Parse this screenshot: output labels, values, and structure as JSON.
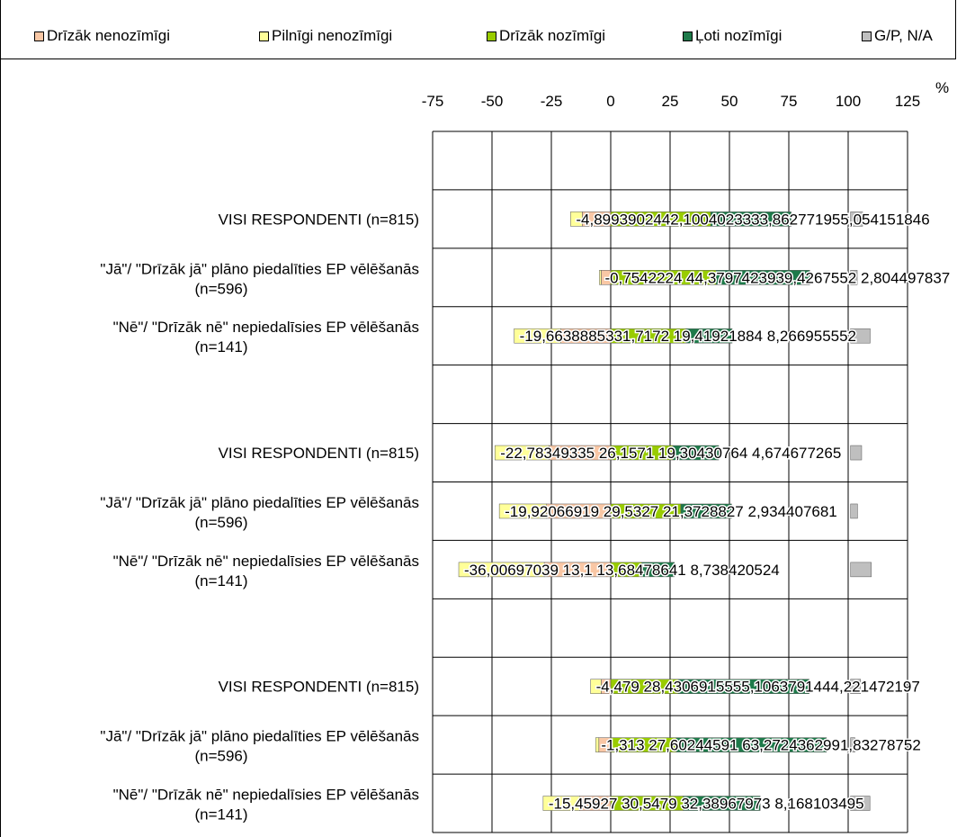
{
  "legend": [
    {
      "label": "Drīzāk nenozīmīgi",
      "color": "#f9c7a5"
    },
    {
      "label": "Pilnīgi nenozīmīgi",
      "color": "#ffff99"
    },
    {
      "label": "Drīzāk nozīmīgi",
      "color": "#99cc00"
    },
    {
      "label": "Ļoti nozīmīgi",
      "color": "#1e7a4a"
    },
    {
      "label": "G/P, N/A",
      "color": "#bfbfbf"
    }
  ],
  "axis": {
    "unit": "%"
  },
  "chart_data": {
    "type": "bar",
    "orientation": "horizontal",
    "stacked": "diverging",
    "xlim": [
      -75,
      125
    ],
    "xticks": [
      -75,
      -50,
      -25,
      0,
      25,
      50,
      75,
      100,
      125
    ],
    "x_unit": "%",
    "grid": true,
    "legend_position": "top",
    "rows": [
      {
        "label": "",
        "values": null
      },
      {
        "label": "VISI RESPONDENTI (n=815)",
        "values": {
          "dn": -12,
          "pn": -4.899390242,
          "dz": 42.10040233,
          "lz": 33.86277195,
          "gp": 5.054151846
        },
        "value_text": "-4,8993902442,1004023333,862771955,054151846"
      },
      {
        "label": "\"Jā\"/  \"Drīzāk jā\" plāno piedalīties EP vēlēšanās (n=596)",
        "values": {
          "dn": -4,
          "pn": -0.75422244,
          "dz": 44.37974239,
          "lz": 39.42675528,
          "gp": 2.804497837
        },
        "value_text": "-0,7542224 44,3797423939,4267552 2,804497837"
      },
      {
        "label": "\"Nē\"/ \"Drīzāk nē\" nepiedalīsies EP vēlēšanās (n=141)",
        "values": {
          "dn": -21,
          "pn": -19.66388853,
          "dz": 31.7172,
          "lz": 19.41921884,
          "gp": 8.266955552
        },
        "value_text": "-19,6638885331,7172 19,41921884       8,266955552"
      },
      {
        "label": "",
        "values": null
      },
      {
        "label": "VISI RESPONDENTI (n=815)",
        "values": {
          "dn": -26,
          "pn": -22.78349335,
          "dz": 26.1571,
          "lz": 19.30430764,
          "gp": 4.674677265
        },
        "value_text": "-22,78349335 26,1571 19,30430764       4,674677265"
      },
      {
        "label": "\"Jā\"/  \"Drīzāk jā\" plāno piedalīties EP vēlēšanās (n=596)",
        "values": {
          "dn": -27,
          "pn": -19.92066919,
          "dz": 29.5327,
          "lz": 21.3728827,
          "gp": 2.934407681
        },
        "value_text": "-19,92066919 29,5327 21,3728827      2,934407681"
      },
      {
        "label": "\"Nē\"/ \"Drīzāk nē\" nepiedalīsies EP vēlēšanās (n=141)",
        "values": {
          "dn": -28,
          "pn": -36.00697039,
          "dz": 13.1,
          "lz": 13.68478641,
          "gp": 8.738420524
        },
        "value_text": "-36,00697039 13,1 13,68478641        8,738420524"
      },
      {
        "label": "",
        "values": null
      },
      {
        "label": "VISI RESPONDENTI (n=815)",
        "values": {
          "dn": -4,
          "pn": -4.479,
          "dz": 28.43069155,
          "lz": 55.10637914,
          "gp": 4.221472197
        },
        "value_text": "-4,479 28,4306915555,1063791444,221472197"
      },
      {
        "label": "\"Jā\"/  \"Drīzāk jā\" plāno piedalīties EP vēlēšanās (n=596)",
        "values": {
          "dn": -5,
          "pn": -1.313,
          "dz": 27.60244591,
          "lz": 63.27243629,
          "gp": 1.83278752
        },
        "value_text": "-1,313 27,60244591 63,2724362991,83278752"
      },
      {
        "label": "\"Nē\"/ \"Drīzāk nē\" nepiedalīsies EP vēlēšanās (n=141)",
        "values": {
          "dn": -13,
          "pn": -15.45927,
          "dz": 30.5479,
          "lz": 32.38967973,
          "gp": 8.168103495
        },
        "value_text": "-15,45927 30,5479 32,38967973       8,168103495"
      }
    ]
  }
}
